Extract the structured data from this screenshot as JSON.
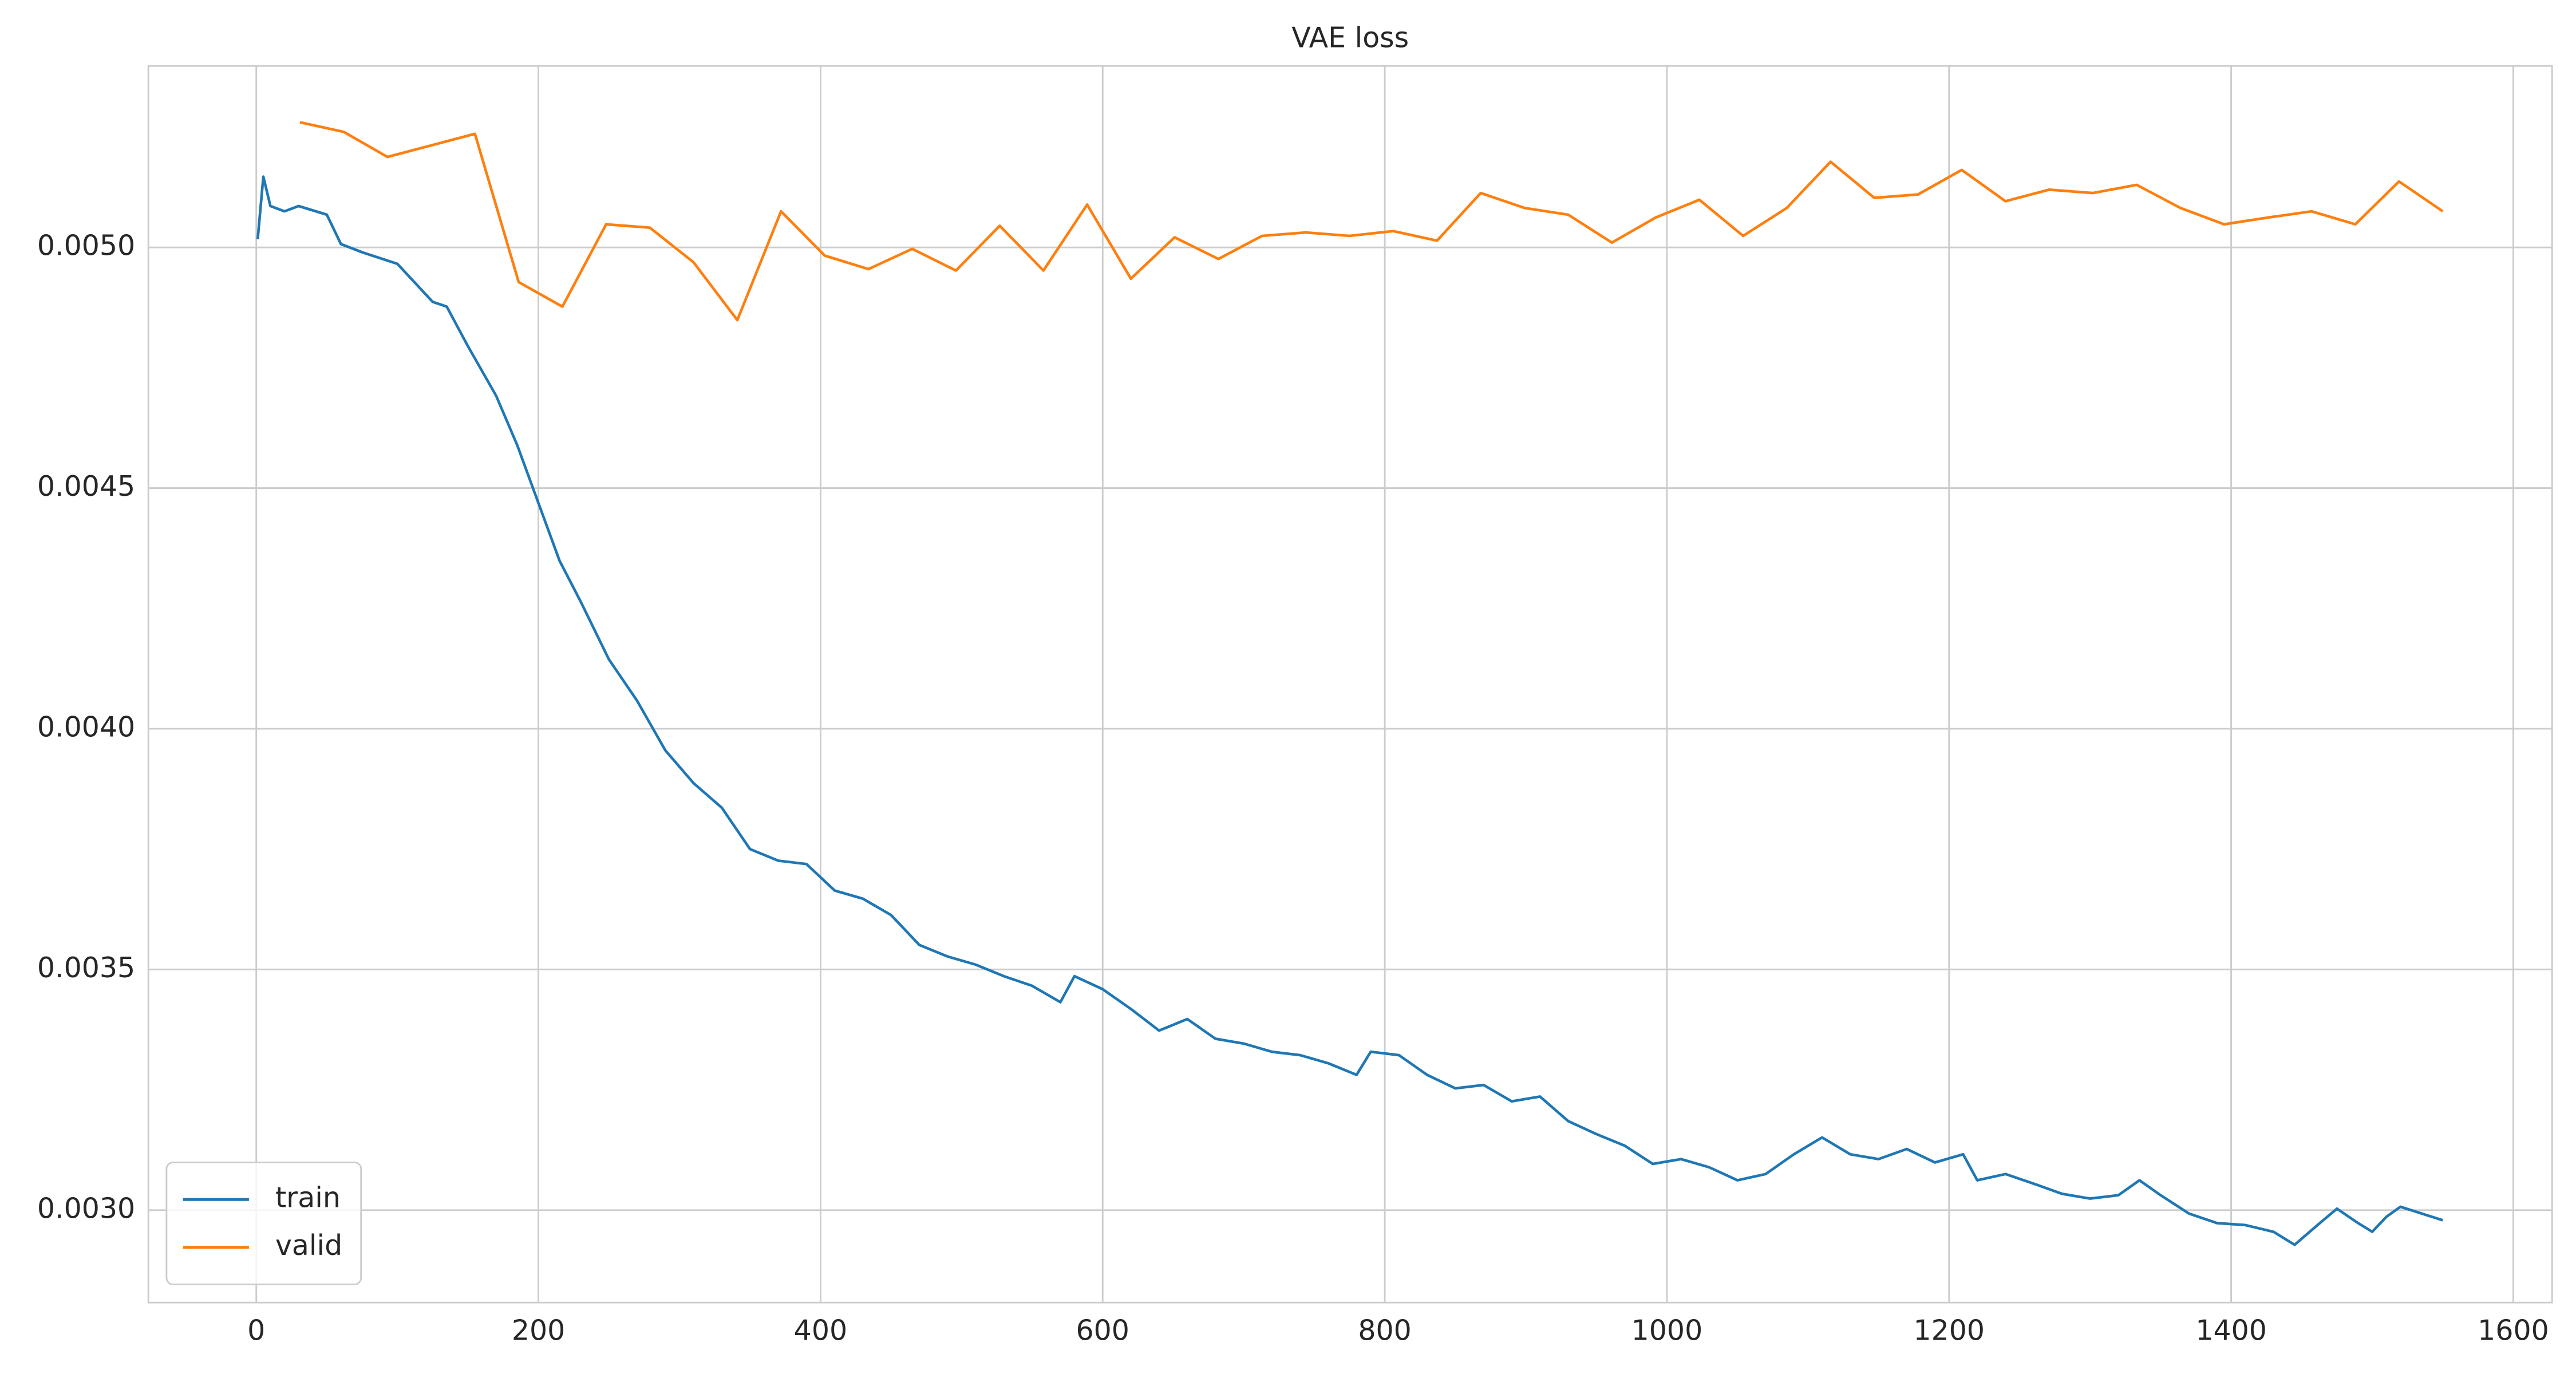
{
  "chart_data": {
    "type": "line",
    "title": "VAE loss",
    "grid": true,
    "legend": "lower left",
    "xlim": [
      -76.5,
      1627.5
    ],
    "ylim": [
      0.002808,
      0.005377
    ],
    "xticks": [
      0,
      200,
      400,
      600,
      800,
      1000,
      1200,
      1400,
      1600
    ],
    "yticks": [
      {
        "value": 0.003,
        "label": "0.0030"
      },
      {
        "value": 0.0035,
        "label": "0.0035"
      },
      {
        "value": 0.004,
        "label": "0.0040"
      },
      {
        "value": 0.0045,
        "label": "0.0045"
      },
      {
        "value": 0.005,
        "label": "0.0050"
      }
    ],
    "series": [
      {
        "name": "train",
        "color": "#1f77b4",
        "x": [
          1,
          5,
          10,
          20,
          30,
          50,
          60,
          75,
          100,
          125,
          135,
          150,
          170,
          185,
          200,
          215,
          230,
          250,
          270,
          290,
          310,
          330,
          350,
          370,
          390,
          410,
          430,
          450,
          470,
          490,
          510,
          530,
          550,
          570,
          580,
          600,
          620,
          640,
          660,
          680,
          700,
          720,
          740,
          760,
          780,
          790,
          810,
          830,
          850,
          870,
          890,
          910,
          930,
          950,
          970,
          990,
          1010,
          1030,
          1050,
          1070,
          1090,
          1110,
          1130,
          1150,
          1170,
          1190,
          1210,
          1220,
          1240,
          1260,
          1280,
          1300,
          1320,
          1335,
          1350,
          1370,
          1390,
          1410,
          1430,
          1445,
          1460,
          1475,
          1490,
          1500,
          1510,
          1520,
          1535,
          1550
        ],
        "values": [
          0.005017,
          0.005147,
          0.005086,
          0.005075,
          0.005086,
          0.005068,
          0.005007,
          0.00499,
          0.004966,
          0.004887,
          0.004877,
          0.004795,
          0.004692,
          0.004589,
          0.004469,
          0.004349,
          0.004264,
          0.004144,
          0.004058,
          0.003955,
          0.003887,
          0.003836,
          0.00375,
          0.003726,
          0.003719,
          0.003664,
          0.003647,
          0.003613,
          0.003551,
          0.003527,
          0.00351,
          0.003486,
          0.003466,
          0.003432,
          0.003486,
          0.003459,
          0.003418,
          0.003373,
          0.003397,
          0.003356,
          0.003346,
          0.003329,
          0.003322,
          0.003305,
          0.003281,
          0.003329,
          0.003322,
          0.003281,
          0.003253,
          0.00326,
          0.003226,
          0.003236,
          0.003185,
          0.003158,
          0.003134,
          0.003096,
          0.003106,
          0.003089,
          0.003062,
          0.003075,
          0.003116,
          0.003151,
          0.003116,
          0.003106,
          0.003127,
          0.003099,
          0.003116,
          0.003062,
          0.003075,
          0.003055,
          0.003034,
          0.003024,
          0.003031,
          0.003062,
          0.003031,
          0.002993,
          0.002973,
          0.002969,
          0.002955,
          0.002928,
          0.002966,
          0.003003,
          0.002973,
          0.002955,
          0.002986,
          0.003007,
          0.002993,
          0.002979
        ]
      },
      {
        "name": "valid",
        "color": "#ff7f0e",
        "x": [
          31,
          62,
          93,
          124,
          155,
          186,
          217,
          248,
          279,
          310,
          341,
          372,
          403,
          434,
          465,
          496,
          527,
          558,
          589,
          620,
          651,
          682,
          713,
          744,
          775,
          806,
          837,
          868,
          899,
          930,
          961,
          992,
          1023,
          1054,
          1085,
          1116,
          1147,
          1178,
          1209,
          1240,
          1271,
          1302,
          1333,
          1364,
          1395,
          1426,
          1457,
          1488,
          1519,
          1550
        ],
        "values": [
          0.00526,
          0.00524,
          0.005188,
          0.005212,
          0.005236,
          0.004928,
          0.004877,
          0.005048,
          0.005041,
          0.004969,
          0.004849,
          0.005075,
          0.004983,
          0.004955,
          0.004997,
          0.004952,
          0.005045,
          0.004952,
          0.005089,
          0.004935,
          0.005021,
          0.004976,
          0.005024,
          0.005031,
          0.005024,
          0.005034,
          0.005014,
          0.005113,
          0.005082,
          0.005068,
          0.00501,
          0.005062,
          0.005099,
          0.005024,
          0.005082,
          0.005178,
          0.005103,
          0.00511,
          0.005161,
          0.005096,
          0.00512,
          0.005113,
          0.00513,
          0.005082,
          0.005048,
          0.005062,
          0.005075,
          0.005048,
          0.005137,
          0.005075
        ]
      }
    ]
  }
}
